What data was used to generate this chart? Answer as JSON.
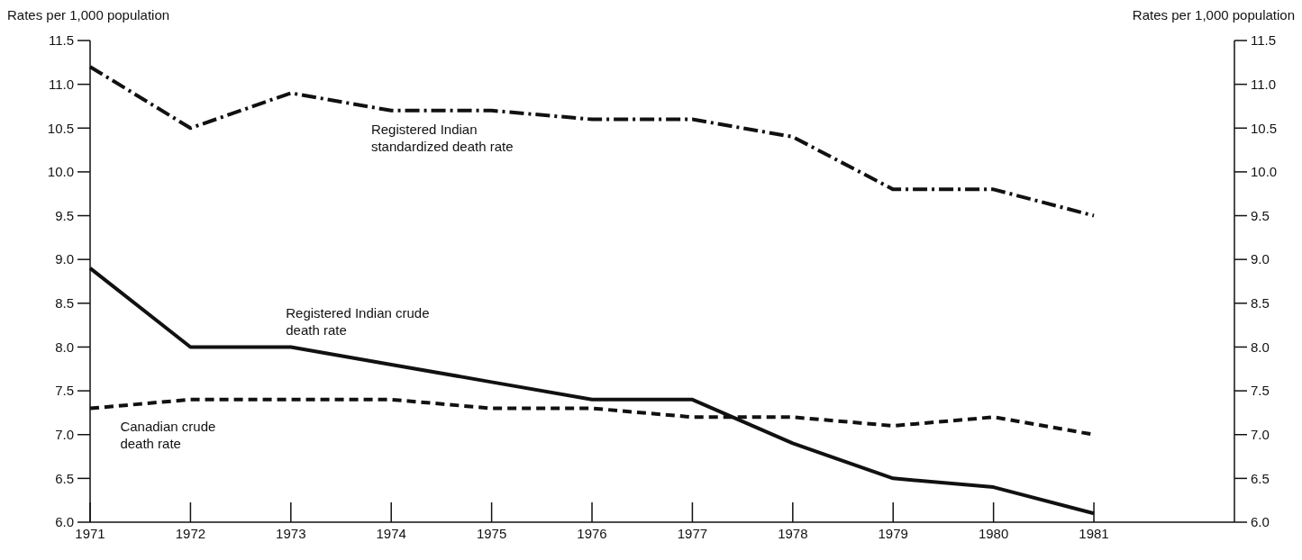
{
  "chart_data": {
    "type": "line",
    "ylabel": "Rates per 1,000 population",
    "y2label": "Rates per 1,000 population",
    "x": [
      1971,
      1972,
      1973,
      1974,
      1975,
      1976,
      1977,
      1978,
      1979,
      1980,
      1981
    ],
    "xlim": [
      1971,
      1982.4
    ],
    "xticks": [
      1971,
      1972,
      1973,
      1974,
      1975,
      1976,
      1977,
      1978,
      1979,
      1980,
      1981
    ],
    "ylim": [
      6,
      11.5
    ],
    "yticks": [
      {
        "value": 6,
        "label": "6.0"
      },
      {
        "value": 6.5,
        "label": "6.5"
      },
      {
        "value": 7,
        "label": "7.0"
      },
      {
        "value": 7.5,
        "label": "7.5"
      },
      {
        "value": 8,
        "label": "8.0"
      },
      {
        "value": 8.5,
        "label": "8.5"
      },
      {
        "value": 9,
        "label": "9.0"
      },
      {
        "value": 9.5,
        "label": "9.5"
      },
      {
        "value": 10,
        "label": "10.0"
      },
      {
        "value": 10.5,
        "label": "10.5"
      },
      {
        "value": 11,
        "label": "11.0"
      },
      {
        "value": 11.5,
        "label": "11.5"
      }
    ],
    "y2lim": [
      6,
      11.5
    ],
    "y2ticks": [
      {
        "value": 6,
        "label": "6.0"
      },
      {
        "value": 6.5,
        "label": "6.5"
      },
      {
        "value": 7,
        "label": "7.0"
      },
      {
        "value": 7.5,
        "label": "7.5"
      },
      {
        "value": 8,
        "label": "8.0"
      },
      {
        "value": 8.5,
        "label": "8.5"
      },
      {
        "value": 9,
        "label": "9.0"
      },
      {
        "value": 9.5,
        "label": "9.5"
      },
      {
        "value": 10,
        "label": "10.0"
      },
      {
        "value": 10.5,
        "label": "10.5"
      },
      {
        "value": 11,
        "label": "11.0"
      },
      {
        "value": 11.5,
        "label": "11.5"
      }
    ],
    "grid": false,
    "marker": "none",
    "series": [
      {
        "name": "Registered Indian standardized death rate",
        "color": "#111111",
        "line_style": "dashdot",
        "values": [
          11.2,
          10.5,
          10.9,
          10.7,
          10.7,
          10.6,
          10.6,
          10.4,
          9.8,
          9.8,
          9.5
        ]
      },
      {
        "name": "Registered Indian crude death rate",
        "color": "#111111",
        "line_style": "solid",
        "values": [
          8.9,
          8.0,
          8.0,
          7.8,
          7.6,
          7.4,
          7.4,
          6.9,
          6.5,
          6.4,
          6.1
        ]
      },
      {
        "name": "Canadian crude death rate",
        "color": "#111111",
        "line_style": "dashed",
        "values": [
          7.3,
          7.4,
          7.4,
          7.4,
          7.3,
          7.3,
          7.2,
          7.2,
          7.1,
          7.2,
          7.0
        ]
      }
    ]
  }
}
